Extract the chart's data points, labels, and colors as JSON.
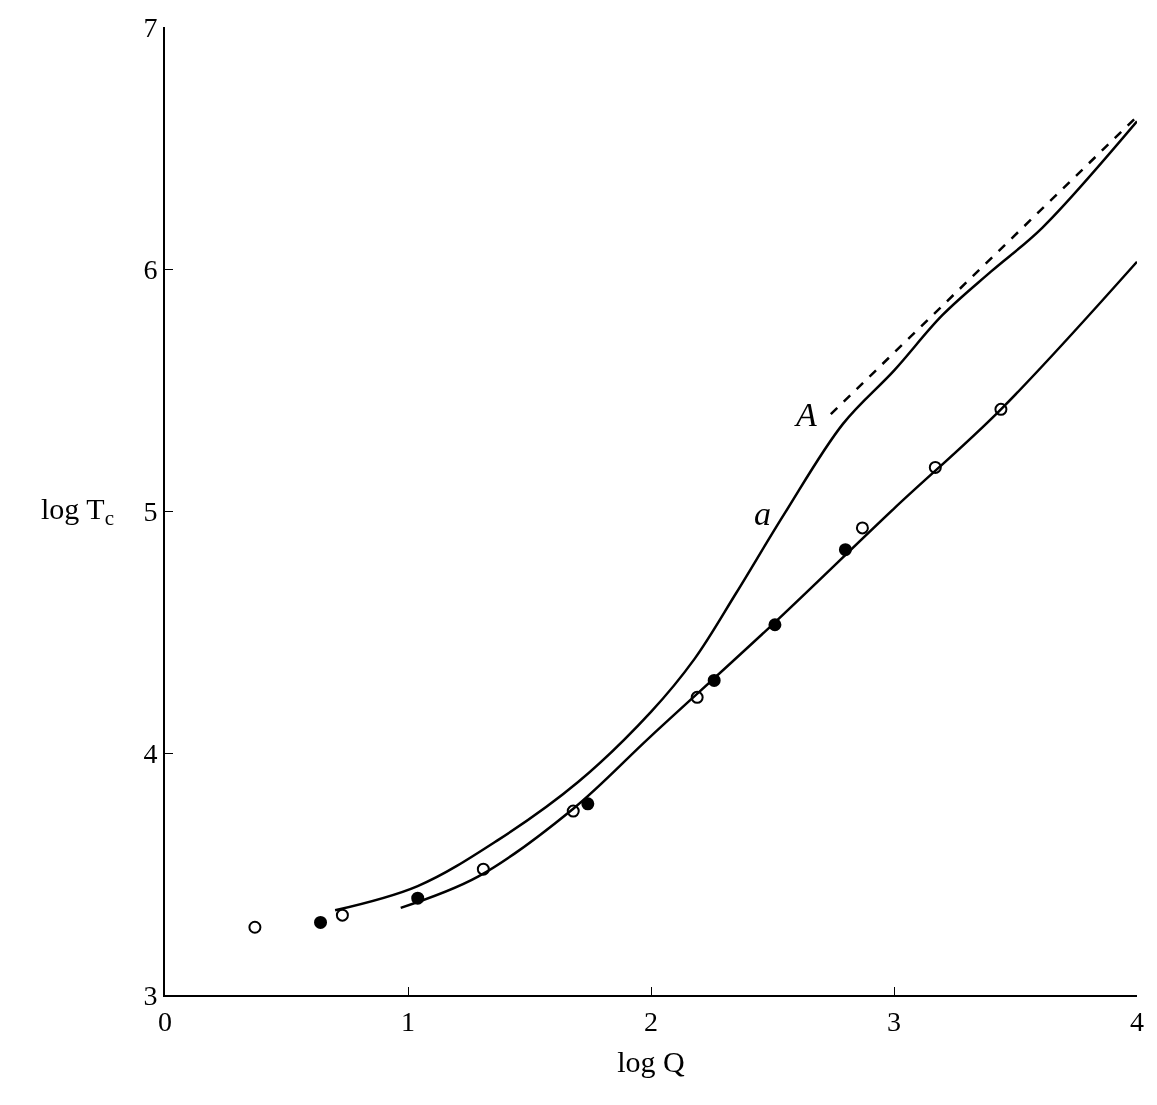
{
  "chart_data": {
    "type": "line",
    "xlabel": "log Q",
    "ylabel": "log T$_{c}$",
    "xlim": [
      0,
      4
    ],
    "ylim": [
      3,
      7
    ],
    "xticks": [
      0,
      1,
      2,
      3,
      4
    ],
    "yticks": [
      3,
      4,
      5,
      6,
      7
    ],
    "line_style": "solid",
    "series": [
      {
        "color": "#000000",
        "x": [
          0.7,
          1.04,
          1.37,
          1.7,
          2.0,
          2.18,
          2.35,
          2.55,
          2.79,
          3.0,
          3.2,
          3.4,
          3.61,
          4.0
        ],
        "values": [
          3.35,
          3.45,
          3.64,
          3.88,
          4.17,
          4.39,
          4.66,
          4.99,
          5.36,
          5.58,
          5.81,
          5.99,
          6.17,
          6.61
        ]
      },
      {
        "color": "#000000",
        "line_style": "dashed",
        "x": [
          2.74,
          4.0
        ],
        "values": [
          5.4,
          6.63
        ]
      },
      {
        "color": "#000000",
        "x": [
          0.97,
          1.29,
          1.68,
          2.0,
          2.51,
          3.0,
          3.44,
          4.0
        ],
        "values": [
          3.36,
          3.49,
          3.77,
          4.07,
          4.54,
          5.01,
          5.42,
          6.03
        ]
      },
      {
        "type": "scatter",
        "marker": "circle-open",
        "color": "#000000",
        "x": [
          0.37,
          0.73,
          1.31,
          1.68,
          2.19,
          2.87,
          3.17,
          3.44
        ],
        "values": [
          3.28,
          3.33,
          3.52,
          3.76,
          4.23,
          4.93,
          5.18,
          5.42
        ]
      },
      {
        "type": "scatter",
        "marker": "circle",
        "color": "#000000",
        "x": [
          0.64,
          1.04,
          1.74,
          2.26,
          2.51,
          2.8
        ],
        "values": [
          3.3,
          3.4,
          3.79,
          4.3,
          4.53,
          4.84
        ]
      }
    ],
    "annotations": [
      {
        "text": "a",
        "x": 2.55,
        "y": 4.99
      },
      {
        "text": "A",
        "x": 2.74,
        "y": 5.4
      }
    ]
  }
}
